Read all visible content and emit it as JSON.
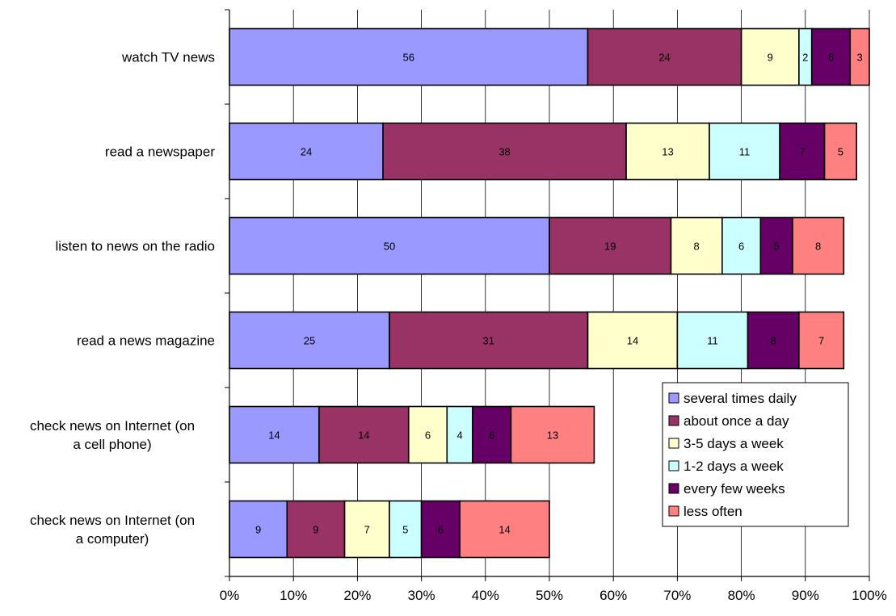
{
  "chart_data": {
    "type": "bar",
    "orientation": "horizontal",
    "stacked": true,
    "title": "",
    "xlabel": "",
    "ylabel": "",
    "xlim": [
      0,
      100
    ],
    "x_ticks": [
      "0%",
      "10%",
      "20%",
      "30%",
      "40%",
      "50%",
      "60%",
      "70%",
      "80%",
      "90%",
      "100%"
    ],
    "grid": true,
    "legend_position": "bottom-right",
    "categories": [
      [
        "watch TV news"
      ],
      [
        "read a newspaper"
      ],
      [
        "listen to news on the radio"
      ],
      [
        "read a news magazine"
      ],
      [
        "check news on Internet (on",
        "a cell phone)"
      ],
      [
        "check news on Internet (on",
        "a computer)"
      ]
    ],
    "series": [
      {
        "name": "several times daily",
        "color": "#9999ff",
        "values": [
          56,
          24,
          50,
          25,
          14,
          9
        ]
      },
      {
        "name": "about once a day",
        "color": "#993366",
        "values": [
          24,
          38,
          19,
          31,
          14,
          9
        ]
      },
      {
        "name": "3-5 days a week",
        "color": "#ffffcc",
        "values": [
          9,
          13,
          8,
          14,
          6,
          7
        ]
      },
      {
        "name": "1-2 days a week",
        "color": "#ccffff",
        "values": [
          2,
          11,
          6,
          11,
          4,
          5
        ]
      },
      {
        "name": "every few weeks",
        "color": "#660066",
        "values": [
          6,
          7,
          5,
          8,
          6,
          6
        ]
      },
      {
        "name": "less often",
        "color": "#ff8080",
        "values": [
          3,
          5,
          8,
          7,
          13,
          14
        ]
      }
    ]
  }
}
